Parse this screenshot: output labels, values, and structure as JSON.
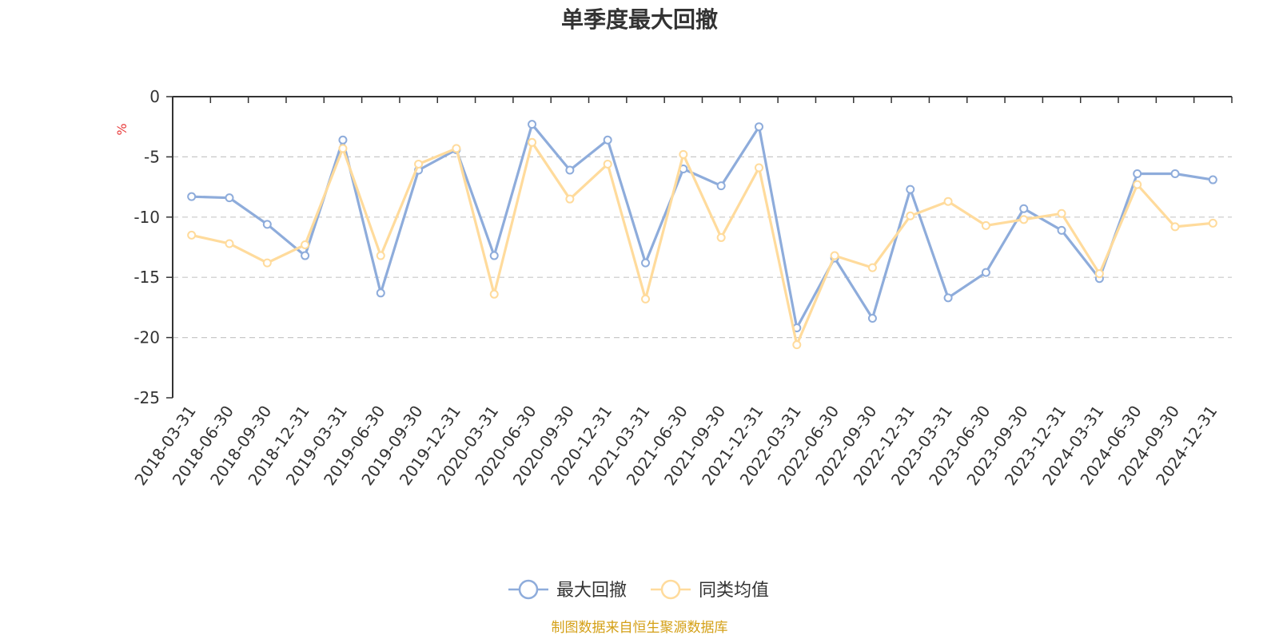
{
  "colors": {
    "series_0": "#8eacdb",
    "series_1": "#ffdb9c",
    "unit": "#e83a3a",
    "source": "#d4a017",
    "axis": "#333333",
    "grid": "#c8c8c8"
  },
  "source_text": "制图数据来自恒生聚源数据库",
  "chart_data": {
    "type": "line",
    "title": "单季度最大回撤",
    "ylabel": "%",
    "xlabel": "",
    "ylim": [
      -25,
      0
    ],
    "yticks": [
      0,
      -5,
      -10,
      -15,
      -20,
      -25
    ],
    "grid": true,
    "legend_position": "bottom-center",
    "categories": [
      "2018-03-31",
      "2018-06-30",
      "2018-09-30",
      "2018-12-31",
      "2019-03-31",
      "2019-06-30",
      "2019-09-30",
      "2019-12-31",
      "2020-03-31",
      "2020-06-30",
      "2020-09-30",
      "2020-12-31",
      "2021-03-31",
      "2021-06-30",
      "2021-09-30",
      "2021-12-31",
      "2022-03-31",
      "2022-06-30",
      "2022-09-30",
      "2022-12-31",
      "2023-03-31",
      "2023-06-30",
      "2023-09-30",
      "2023-12-31",
      "2024-03-31",
      "2024-06-30",
      "2024-09-30",
      "2024-12-31"
    ],
    "series": [
      {
        "name": "最大回撤",
        "values": [
          -8.3,
          -8.4,
          -10.6,
          -13.2,
          -3.6,
          -16.3,
          -6.1,
          -4.4,
          -13.2,
          -2.3,
          -6.1,
          -3.6,
          -13.8,
          -6.0,
          -7.4,
          -2.5,
          -19.2,
          -13.4,
          -18.4,
          -7.7,
          -16.7,
          -14.6,
          -9.3,
          -11.1,
          -15.1,
          -6.4,
          -6.4,
          -6.9
        ]
      },
      {
        "name": "同类均值",
        "values": [
          -11.5,
          -12.2,
          -13.8,
          -12.3,
          -4.3,
          -13.2,
          -5.6,
          -4.3,
          -16.4,
          -3.8,
          -8.5,
          -5.6,
          -16.8,
          -4.8,
          -11.7,
          -5.9,
          -20.6,
          -13.2,
          -14.2,
          -9.9,
          -8.7,
          -10.7,
          -10.2,
          -9.7,
          -14.7,
          -7.3,
          -10.8,
          -10.5
        ]
      }
    ]
  }
}
